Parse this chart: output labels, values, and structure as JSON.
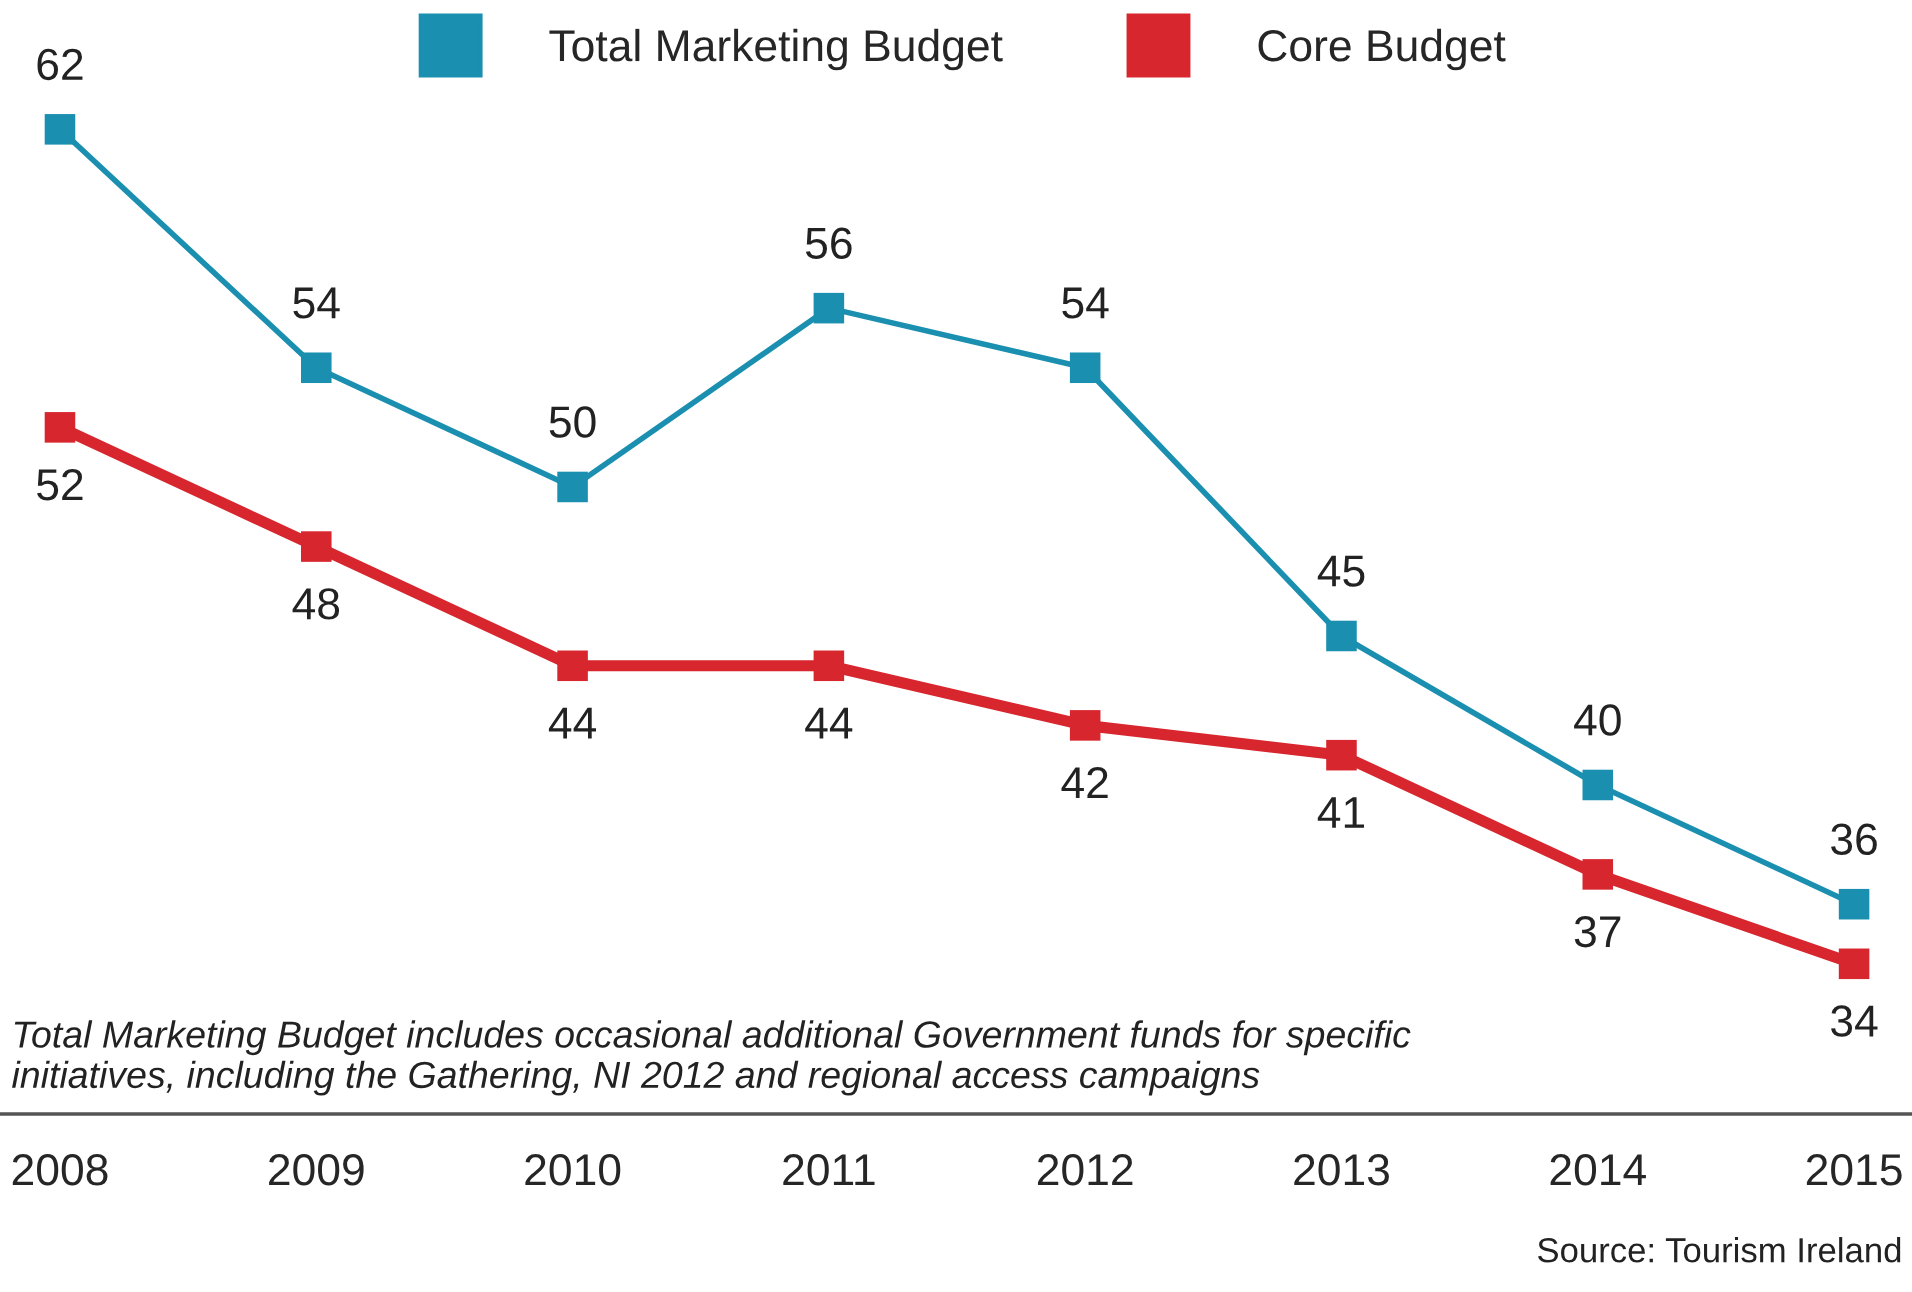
{
  "chart_data": {
    "type": "line",
    "categories": [
      "2008",
      "2009",
      "2010",
      "2011",
      "2012",
      "2013",
      "2014",
      "2015"
    ],
    "series": [
      {
        "name": "Total Marketing Budget",
        "color": "#1a8fb0",
        "values": [
          62,
          54,
          50,
          56,
          54,
          45,
          40,
          36
        ]
      },
      {
        "name": "Core Budget",
        "color": "#d7262e",
        "values": [
          52,
          48,
          44,
          44,
          42,
          41,
          37,
          34
        ]
      }
    ],
    "data_labels": true,
    "marker": "square",
    "line_style": "solid",
    "legend": "top",
    "grid": false,
    "tick_labels": "x",
    "annotations": [
      "Total Marketing Budget includes occasional additional Government funds for specific initiatives, including the Gathering, NI 2012 and regional access campaigns",
      "Source: Tourism Ireland"
    ]
  }
}
